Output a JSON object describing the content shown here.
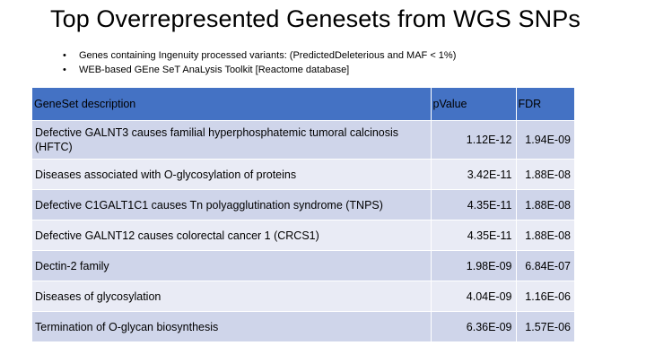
{
  "slide": {
    "title": "Top Overrepresented Genesets from WGS SNPs",
    "bullets": [
      "Genes containing Ingenuity processed variants: (PredictedDeleterious and MAF < 1%)",
      "WEB-based GEne SeT AnaLysis Toolkit [Reactome database]"
    ]
  },
  "table": {
    "headers": [
      "GeneSet description",
      "pValue",
      "FDR"
    ],
    "rows": [
      {
        "description": "Defective GALNT3 causes familial hyperphosphatemic tumoral calcinosis (HFTC)",
        "pvalue": "1.12E-12",
        "fdr": "1.94E-09"
      },
      {
        "description": "Diseases associated with O-glycosylation of proteins",
        "pvalue": "3.42E-11",
        "fdr": "1.88E-08"
      },
      {
        "description": "Defective C1GALT1C1 causes Tn polyagglutination syndrome (TNPS)",
        "pvalue": "4.35E-11",
        "fdr": "1.88E-08"
      },
      {
        "description": "Defective GALNT12 causes colorectal cancer 1 (CRCS1)",
        "pvalue": "4.35E-11",
        "fdr": "1.88E-08"
      },
      {
        "description": "Dectin-2 family",
        "pvalue": "1.98E-09",
        "fdr": "6.84E-07"
      },
      {
        "description": "Diseases of glycosylation",
        "pvalue": "4.04E-09",
        "fdr": "1.16E-06"
      },
      {
        "description": "Termination of O-glycan biosynthesis",
        "pvalue": "6.36E-09",
        "fdr": "1.57E-06"
      }
    ]
  },
  "colors": {
    "header_bg": "#4472c4",
    "row_band_dark": "#cfd5ea",
    "row_band_light": "#e9ebf5"
  }
}
